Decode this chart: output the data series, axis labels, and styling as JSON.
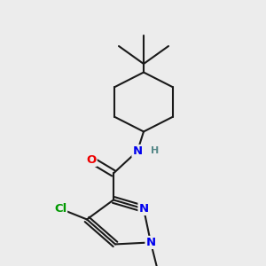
{
  "bg_color": "#ececec",
  "bond_color": "#1a1a1a",
  "bond_width": 1.5,
  "atom_colors": {
    "N": "#0000ee",
    "O": "#ee0000",
    "Cl": "#009900",
    "C": "#1a1a1a",
    "H": "#558888"
  },
  "font_size_atom": 9.5,
  "font_size_small": 8.0,
  "font_size_methyl": 7.5
}
